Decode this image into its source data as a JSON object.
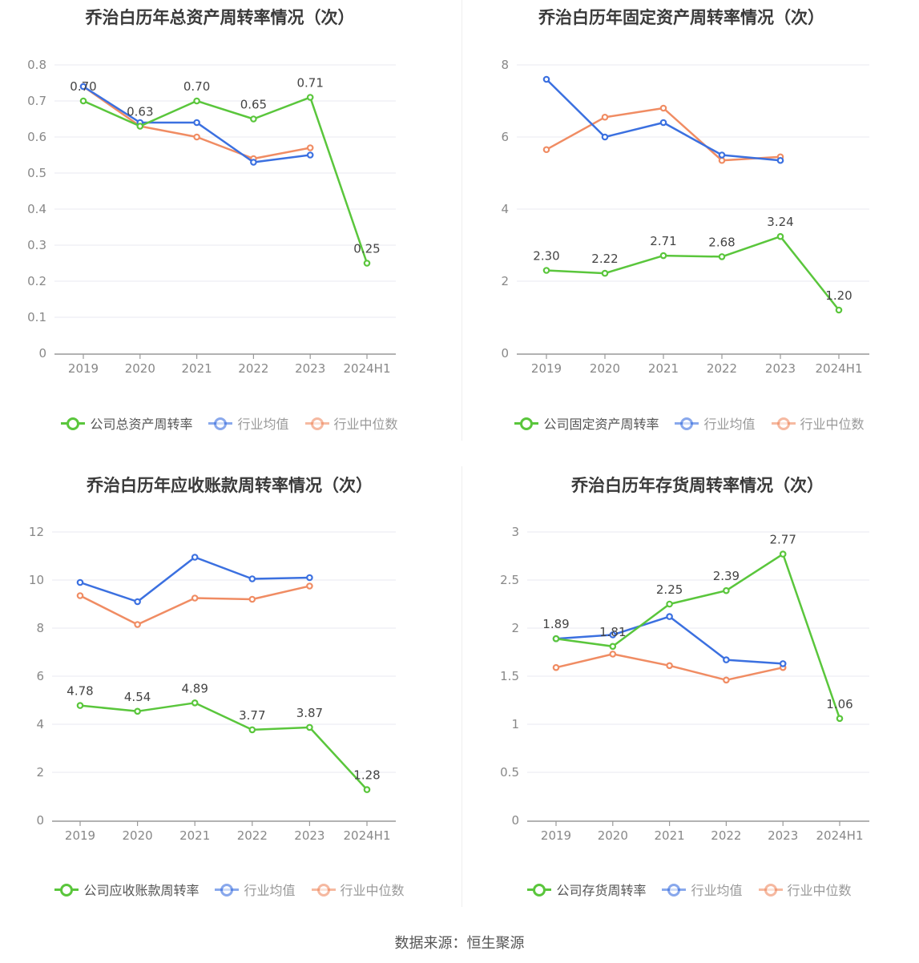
{
  "footer": "数据来源：恒生聚源",
  "colors": {
    "company": "#5ac63c",
    "avg": "#3b70e0",
    "median": "#f08c63",
    "grid": "#e8eaf2",
    "axis": "#999999"
  },
  "legend": {
    "avg": "行业均值",
    "median": "行业中位数"
  },
  "charts": [
    {
      "title": "乔治白历年总资产周转率情况（次）",
      "legend_company": "公司总资产周转率",
      "chart_data": {
        "type": "line",
        "categories": [
          "2019",
          "2020",
          "2021",
          "2022",
          "2023",
          "2024H1"
        ],
        "ylim": [
          0,
          0.8
        ],
        "yticks": [
          "0",
          "0.1",
          "0.2",
          "0.3",
          "0.4",
          "0.5",
          "0.6",
          "0.7",
          "0.8"
        ],
        "series": [
          {
            "name": "公司总资产周转率",
            "key": "company",
            "values": [
              0.7,
              0.63,
              0.7,
              0.65,
              0.71,
              0.25
            ],
            "labels": [
              "0.70",
              "0.63",
              "0.70",
              "0.65",
              "0.71",
              "0.25"
            ]
          },
          {
            "name": "行业均值",
            "key": "avg",
            "values": [
              0.74,
              0.64,
              0.64,
              0.53,
              0.55,
              null
            ]
          },
          {
            "name": "行业中位数",
            "key": "median",
            "values": [
              0.74,
              0.63,
              0.6,
              0.54,
              0.57,
              null
            ]
          }
        ]
      }
    },
    {
      "title": "乔治白历年固定资产周转率情况（次）",
      "legend_company": "公司固定资产周转率",
      "chart_data": {
        "type": "line",
        "categories": [
          "2019",
          "2020",
          "2021",
          "2022",
          "2023",
          "2024H1"
        ],
        "ylim": [
          0,
          8
        ],
        "yticks": [
          "0",
          "2",
          "4",
          "6",
          "8"
        ],
        "series": [
          {
            "name": "公司固定资产周转率",
            "key": "company",
            "values": [
              2.3,
              2.22,
              2.71,
              2.68,
              3.24,
              1.2
            ],
            "labels": [
              "2.30",
              "2.22",
              "2.71",
              "2.68",
              "3.24",
              "1.20"
            ]
          },
          {
            "name": "行业均值",
            "key": "avg",
            "values": [
              7.6,
              6.0,
              6.4,
              5.5,
              5.35,
              null
            ]
          },
          {
            "name": "行业中位数",
            "key": "median",
            "values": [
              5.65,
              6.55,
              6.8,
              5.35,
              5.45,
              null
            ]
          }
        ]
      }
    },
    {
      "title": "乔治白历年应收账款周转率情况（次）",
      "legend_company": "公司应收账款周转率",
      "chart_data": {
        "type": "line",
        "categories": [
          "2019",
          "2020",
          "2021",
          "2022",
          "2023",
          "2024H1"
        ],
        "ylim": [
          0,
          12
        ],
        "yticks": [
          "0",
          "2",
          "4",
          "6",
          "8",
          "10",
          "12"
        ],
        "series": [
          {
            "name": "公司应收账款周转率",
            "key": "company",
            "values": [
              4.78,
              4.54,
              4.89,
              3.77,
              3.87,
              1.28
            ],
            "labels": [
              "4.78",
              "4.54",
              "4.89",
              "3.77",
              "3.87",
              "1.28"
            ]
          },
          {
            "name": "行业均值",
            "key": "avg",
            "values": [
              9.9,
              9.1,
              10.95,
              10.05,
              10.1,
              null
            ]
          },
          {
            "name": "行业中位数",
            "key": "median",
            "values": [
              9.35,
              8.15,
              9.25,
              9.2,
              9.75,
              null
            ]
          }
        ]
      }
    },
    {
      "title": "乔治白历年存货周转率情况（次）",
      "legend_company": "公司存货周转率",
      "chart_data": {
        "type": "line",
        "categories": [
          "2019",
          "2020",
          "2021",
          "2022",
          "2023",
          "2024H1"
        ],
        "ylim": [
          0,
          3
        ],
        "yticks": [
          "0",
          "0.5",
          "1",
          "1.5",
          "2",
          "2.5",
          "3"
        ],
        "series": [
          {
            "name": "公司存货周转率",
            "key": "company",
            "values": [
              1.89,
              1.81,
              2.25,
              2.39,
              2.77,
              1.06
            ],
            "labels": [
              "1.89",
              "1.81",
              "2.25",
              "2.39",
              "2.77",
              "1.06"
            ]
          },
          {
            "name": "行业均值",
            "key": "avg",
            "values": [
              1.89,
              1.93,
              2.12,
              1.67,
              1.63,
              null
            ]
          },
          {
            "name": "行业中位数",
            "key": "median",
            "values": [
              1.59,
              1.73,
              1.61,
              1.46,
              1.59,
              null
            ]
          }
        ]
      }
    }
  ]
}
